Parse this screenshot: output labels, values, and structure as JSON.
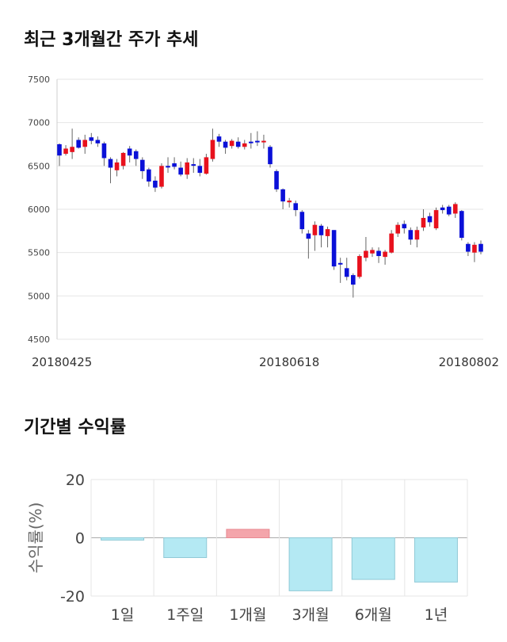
{
  "titles": {
    "price_chart": "최근 3개월간 주가 추세",
    "returns_chart": "기간별 수익률"
  },
  "colors": {
    "up": "#e8111d",
    "down": "#0a10d8",
    "positive_bar": "#f4a5ab",
    "negative_bar": "#b4e9f3",
    "negative_bar_edge": "#8fc9d6",
    "grid": "#e6e6e6"
  },
  "chart_data": [
    {
      "type": "candlestick",
      "title": "최근 3개월간 주가 추세",
      "ylim": [
        4500,
        7500
      ],
      "yticks": [
        4500,
        5000,
        5500,
        6000,
        6500,
        7000,
        7500
      ],
      "xtick_labels": [
        {
          "index": 0,
          "label": "20180425"
        },
        {
          "index": 36,
          "label": "20180618"
        },
        {
          "index": 70,
          "label": "20180802"
        }
      ],
      "grid": true,
      "candles": [
        {
          "o": 6750,
          "c": 6620,
          "h": 6760,
          "l": 6500
        },
        {
          "o": 6640,
          "c": 6700,
          "h": 6740,
          "l": 6620
        },
        {
          "o": 6660,
          "c": 6720,
          "h": 6930,
          "l": 6580
        },
        {
          "o": 6800,
          "c": 6710,
          "h": 6830,
          "l": 6700
        },
        {
          "o": 6720,
          "c": 6800,
          "h": 6860,
          "l": 6640
        },
        {
          "o": 6830,
          "c": 6790,
          "h": 6880,
          "l": 6750
        },
        {
          "o": 6800,
          "c": 6760,
          "h": 6840,
          "l": 6720
        },
        {
          "o": 6760,
          "c": 6590,
          "h": 6780,
          "l": 6500
        },
        {
          "o": 6580,
          "c": 6480,
          "h": 6600,
          "l": 6300
        },
        {
          "o": 6450,
          "c": 6540,
          "h": 6580,
          "l": 6380
        },
        {
          "o": 6500,
          "c": 6650,
          "h": 6660,
          "l": 6460
        },
        {
          "o": 6700,
          "c": 6620,
          "h": 6730,
          "l": 6540
        },
        {
          "o": 6670,
          "c": 6580,
          "h": 6690,
          "l": 6500
        },
        {
          "o": 6570,
          "c": 6440,
          "h": 6600,
          "l": 6350
        },
        {
          "o": 6460,
          "c": 6320,
          "h": 6480,
          "l": 6260
        },
        {
          "o": 6330,
          "c": 6250,
          "h": 6380,
          "l": 6200
        },
        {
          "o": 6260,
          "c": 6500,
          "h": 6530,
          "l": 6240
        },
        {
          "o": 6500,
          "c": 6490,
          "h": 6600,
          "l": 6420
        },
        {
          "o": 6530,
          "c": 6490,
          "h": 6600,
          "l": 6460
        },
        {
          "o": 6480,
          "c": 6400,
          "h": 6550,
          "l": 6380
        },
        {
          "o": 6400,
          "c": 6540,
          "h": 6590,
          "l": 6350
        },
        {
          "o": 6520,
          "c": 6510,
          "h": 6590,
          "l": 6420
        },
        {
          "o": 6500,
          "c": 6420,
          "h": 6580,
          "l": 6380
        },
        {
          "o": 6410,
          "c": 6600,
          "h": 6640,
          "l": 6400
        },
        {
          "o": 6580,
          "c": 6800,
          "h": 6930,
          "l": 6550
        },
        {
          "o": 6840,
          "c": 6780,
          "h": 6870,
          "l": 6720
        },
        {
          "o": 6780,
          "c": 6710,
          "h": 6800,
          "l": 6640
        },
        {
          "o": 6730,
          "c": 6790,
          "h": 6810,
          "l": 6700
        },
        {
          "o": 6780,
          "c": 6720,
          "h": 6830,
          "l": 6700
        },
        {
          "o": 6720,
          "c": 6760,
          "h": 6800,
          "l": 6690
        },
        {
          "o": 6780,
          "c": 6770,
          "h": 6880,
          "l": 6700
        },
        {
          "o": 6790,
          "c": 6780,
          "h": 6900,
          "l": 6730
        },
        {
          "o": 6790,
          "c": 6790,
          "h": 6860,
          "l": 6700
        },
        {
          "o": 6720,
          "c": 6520,
          "h": 6740,
          "l": 6480
        },
        {
          "o": 6440,
          "c": 6230,
          "h": 6460,
          "l": 6200
        },
        {
          "o": 6230,
          "c": 6090,
          "h": 6240,
          "l": 6000
        },
        {
          "o": 6080,
          "c": 6100,
          "h": 6130,
          "l": 6020
        },
        {
          "o": 6070,
          "c": 5990,
          "h": 6100,
          "l": 5920
        },
        {
          "o": 5970,
          "c": 5770,
          "h": 5990,
          "l": 5720
        },
        {
          "o": 5720,
          "c": 5660,
          "h": 5760,
          "l": 5430
        },
        {
          "o": 5700,
          "c": 5820,
          "h": 5860,
          "l": 5520
        },
        {
          "o": 5810,
          "c": 5700,
          "h": 5830,
          "l": 5560
        },
        {
          "o": 5690,
          "c": 5770,
          "h": 5800,
          "l": 5560
        },
        {
          "o": 5760,
          "c": 5340,
          "h": 5760,
          "l": 5300
        },
        {
          "o": 5380,
          "c": 5370,
          "h": 5440,
          "l": 5150
        },
        {
          "o": 5320,
          "c": 5220,
          "h": 5440,
          "l": 5180
        },
        {
          "o": 5240,
          "c": 5130,
          "h": 5260,
          "l": 4980
        },
        {
          "o": 5220,
          "c": 5460,
          "h": 5480,
          "l": 5200
        },
        {
          "o": 5440,
          "c": 5520,
          "h": 5680,
          "l": 5400
        },
        {
          "o": 5490,
          "c": 5530,
          "h": 5560,
          "l": 5450
        },
        {
          "o": 5520,
          "c": 5460,
          "h": 5560,
          "l": 5380
        },
        {
          "o": 5450,
          "c": 5510,
          "h": 5530,
          "l": 5360
        },
        {
          "o": 5500,
          "c": 5720,
          "h": 5760,
          "l": 5490
        },
        {
          "o": 5720,
          "c": 5820,
          "h": 5850,
          "l": 5680
        },
        {
          "o": 5830,
          "c": 5780,
          "h": 5870,
          "l": 5720
        },
        {
          "o": 5760,
          "c": 5650,
          "h": 5790,
          "l": 5590
        },
        {
          "o": 5650,
          "c": 5760,
          "h": 5800,
          "l": 5560
        },
        {
          "o": 5790,
          "c": 5900,
          "h": 6000,
          "l": 5750
        },
        {
          "o": 5920,
          "c": 5850,
          "h": 5960,
          "l": 5800
        },
        {
          "o": 5780,
          "c": 5990,
          "h": 6020,
          "l": 5760
        },
        {
          "o": 6020,
          "c": 5990,
          "h": 6050,
          "l": 5950
        },
        {
          "o": 6030,
          "c": 5940,
          "h": 6050,
          "l": 5920
        },
        {
          "o": 5950,
          "c": 6060,
          "h": 6080,
          "l": 5900
        },
        {
          "o": 5980,
          "c": 5670,
          "h": 5990,
          "l": 5640
        },
        {
          "o": 5600,
          "c": 5510,
          "h": 5620,
          "l": 5460
        },
        {
          "o": 5500,
          "c": 5590,
          "h": 5620,
          "l": 5390
        },
        {
          "o": 5600,
          "c": 5510,
          "h": 5640,
          "l": 5480
        }
      ]
    },
    {
      "type": "bar",
      "title": "기간별 수익률",
      "ylabel": "수익률(%)",
      "ylim": [
        -20,
        20
      ],
      "yticks": [
        20,
        0,
        -20
      ],
      "grid": true,
      "categories": [
        "1일",
        "1주일",
        "1개월",
        "3개월",
        "6개월",
        "1년"
      ],
      "values": [
        -0.8,
        -6.8,
        2.9,
        -18.2,
        -14.3,
        -15.2
      ]
    }
  ]
}
